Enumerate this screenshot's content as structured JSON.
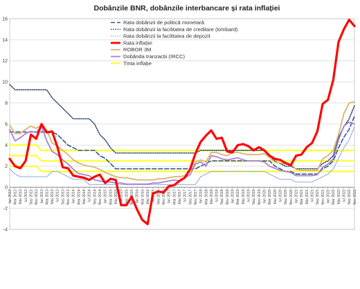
{
  "chart_data": {
    "type": "line",
    "title": "Dobânzile BNR, dobânzile interbancare și rata inflației",
    "xlabel": "",
    "ylabel": "",
    "ylim": [
      -4,
      16
    ],
    "yticks": [
      -4,
      -2,
      0,
      2,
      4,
      6,
      8,
      10,
      12,
      14,
      16
    ],
    "grid": "horizontal",
    "legend_position": "top-center",
    "categories": [
      "Ian 2012",
      "Mar 2012",
      "Mai 2012",
      "Iul 2012",
      "Sep 2012",
      "Nov 2012",
      "Ian 2013",
      "Mar 2013",
      "Mai 2013",
      "Iul 2013",
      "Sep 2013",
      "Nov 2013",
      "Ian 2014",
      "Mar 2014",
      "Mai 2014",
      "Iul 2014",
      "Sep 2014",
      "Nov 2014",
      "Ian 2015",
      "Mar 2015",
      "Mai 2015",
      "Iul 2015",
      "Sep 2015",
      "Nov 2015",
      "Ian 2016",
      "Mar 2016",
      "Mai 2016",
      "Iul 2016",
      "Sep 2016",
      "Nov 2016",
      "Ian 2017",
      "Mar 2017",
      "Mai 2017",
      "Iul 2017",
      "Sep 2017",
      "Nov 2017",
      "Ian 2018",
      "Mar 2018",
      "Mai 2018",
      "Iul 2018",
      "Sep 2018",
      "Nov 2018",
      "Ian 2019",
      "Mar 2019",
      "Mai 2019",
      "Iul 2019",
      "Sep 2019",
      "Nov 2019",
      "Ian 2020",
      "Mar 2020",
      "Mai 2020",
      "Iul 2020",
      "Sep 2020",
      "Nov 2020",
      "Ian 2021",
      "Mar 2021",
      "Mai 2021",
      "Iul 2021",
      "Sep 2021",
      "Nov 2021",
      "Ian 2022",
      "Mar 2022",
      "Mai 2022",
      "Iul 2022",
      "Sep 2022",
      "Nov 2022"
    ],
    "series": [
      {
        "name": "Rata dobânzii de politică monetară",
        "color": "#2f5597",
        "dash": "6,3",
        "width": 1.6,
        "values": [
          5.25,
          5.25,
          5.25,
          5.25,
          5.25,
          5.25,
          5.25,
          5.25,
          5.25,
          5.0,
          4.5,
          4.0,
          3.75,
          3.5,
          3.5,
          3.5,
          3.5,
          3.0,
          2.75,
          2.25,
          1.75,
          1.75,
          1.75,
          1.75,
          1.75,
          1.75,
          1.75,
          1.75,
          1.75,
          1.75,
          1.75,
          1.75,
          1.75,
          1.75,
          1.75,
          1.75,
          2.0,
          2.25,
          2.5,
          2.5,
          2.5,
          2.5,
          2.5,
          2.5,
          2.5,
          2.5,
          2.5,
          2.5,
          2.5,
          2.5,
          2.0,
          1.75,
          1.5,
          1.5,
          1.25,
          1.25,
          1.25,
          1.25,
          1.25,
          1.75,
          2.0,
          2.5,
          3.75,
          4.75,
          5.5,
          6.75
        ]
      },
      {
        "name": "Rata dobânzii la facilitatea de creditare (lombard)",
        "color": "#1f3864",
        "dash": "1.6,1.6",
        "width": 1.4,
        "values": [
          9.75,
          9.25,
          9.25,
          9.25,
          9.25,
          9.25,
          9.25,
          9.25,
          8.5,
          8.0,
          7.5,
          7.0,
          6.5,
          6.5,
          6.5,
          6.5,
          6.0,
          5.0,
          4.5,
          3.75,
          3.25,
          3.25,
          3.25,
          3.25,
          3.25,
          3.25,
          3.25,
          3.25,
          3.25,
          3.25,
          3.25,
          3.25,
          3.25,
          3.25,
          3.25,
          3.25,
          3.5,
          3.5,
          3.5,
          3.5,
          3.5,
          3.5,
          3.5,
          3.5,
          3.5,
          3.5,
          3.5,
          3.5,
          3.5,
          3.0,
          2.5,
          2.25,
          2.0,
          2.0,
          1.75,
          1.75,
          1.75,
          1.75,
          1.75,
          2.25,
          2.5,
          3.0,
          4.75,
          5.75,
          6.5,
          7.75
        ]
      },
      {
        "name": "Rata dobânzii la facilitatea de depozit",
        "color": "#8eaadb",
        "dash": "1.6,1.6",
        "width": 1.3,
        "values": [
          1.75,
          1.25,
          1.0,
          1.0,
          1.0,
          1.0,
          1.0,
          1.0,
          1.5,
          1.5,
          1.25,
          1.0,
          0.75,
          0.75,
          0.75,
          0.25,
          0.25,
          0.25,
          0.25,
          0.25,
          0.25,
          0.25,
          0.25,
          0.25,
          0.25,
          0.25,
          0.25,
          0.25,
          0.25,
          0.25,
          0.25,
          0.25,
          0.25,
          0.25,
          0.25,
          0.25,
          1.0,
          1.25,
          1.5,
          1.5,
          1.5,
          1.5,
          1.5,
          1.5,
          1.5,
          1.5,
          1.5,
          1.5,
          1.5,
          1.25,
          1.0,
          0.75,
          0.75,
          0.75,
          0.5,
          0.5,
          0.5,
          0.5,
          0.75,
          1.0,
          1.25,
          1.75,
          2.75,
          3.75,
          4.5,
          5.75
        ]
      },
      {
        "name": "Rata inflației",
        "color": "#ff0000",
        "dash": "",
        "width": 3.2,
        "values": [
          2.7,
          2.0,
          1.8,
          2.5,
          5.0,
          4.6,
          6.0,
          5.2,
          5.3,
          3.8,
          1.9,
          1.8,
          1.1,
          1.0,
          0.9,
          0.7,
          1.0,
          1.2,
          0.4,
          0.8,
          0.7,
          -1.7,
          -1.7,
          -0.9,
          -2.1,
          -3.1,
          -3.5,
          -0.6,
          -0.4,
          -0.5,
          0.1,
          0.2,
          0.6,
          0.9,
          1.7,
          3.2,
          4.3,
          4.9,
          5.4,
          4.6,
          4.7,
          3.4,
          3.3,
          4.0,
          4.1,
          3.9,
          3.5,
          3.8,
          3.5,
          3.0,
          2.7,
          2.6,
          2.3,
          2.1,
          3.0,
          3.1,
          3.8,
          4.2,
          5.3,
          7.9,
          8.3,
          10.2,
          13.8,
          15.0,
          15.9,
          15.3
        ]
      },
      {
        "name": "ROBOR 3M",
        "color": "#d9b36b",
        "dash": "",
        "width": 1.8,
        "values": [
          5.9,
          5.1,
          5.1,
          5.5,
          5.8,
          5.6,
          5.9,
          5.4,
          4.2,
          3.9,
          3.5,
          3.1,
          2.6,
          2.3,
          2.1,
          2.0,
          1.9,
          1.7,
          1.4,
          1.2,
          1.0,
          0.9,
          0.9,
          0.8,
          0.7,
          0.7,
          0.7,
          0.7,
          0.8,
          0.8,
          0.9,
          1.0,
          1.0,
          1.1,
          1.6,
          2.4,
          2.6,
          2.4,
          3.3,
          3.3,
          3.1,
          3.0,
          3.3,
          3.3,
          3.2,
          3.1,
          3.1,
          3.1,
          3.2,
          2.8,
          2.4,
          2.3,
          2.2,
          2.2,
          1.7,
          1.6,
          1.6,
          1.6,
          1.6,
          2.7,
          3.0,
          3.5,
          5.0,
          7.0,
          8.0,
          8.1
        ]
      },
      {
        "name": "Dobânda tranzacții (IRCC)",
        "color": "#a77fd6",
        "dash": "",
        "width": 1.8,
        "values": [
          5.5,
          4.4,
          4.7,
          5.1,
          5.3,
          5.2,
          5.8,
          4.4,
          3.4,
          3.1,
          2.6,
          2.2,
          1.7,
          1.3,
          1.2,
          1.1,
          0.7,
          0.6,
          0.5,
          0.5,
          0.4,
          0.4,
          0.3,
          0.3,
          0.3,
          0.3,
          0.3,
          0.4,
          0.4,
          0.5,
          0.6,
          0.7,
          0.6,
          0.9,
          1.2,
          2.2,
          2.4,
          2.0,
          3.0,
          2.9,
          2.7,
          2.6,
          2.7,
          2.8,
          2.6,
          2.5,
          2.5,
          2.5,
          2.4,
          2.0,
          1.8,
          1.6,
          1.5,
          1.4,
          1.1,
          1.1,
          1.1,
          1.1,
          1.2,
          1.9,
          2.2,
          2.7,
          4.5,
          5.8,
          6.2,
          6.0
        ]
      },
      {
        "name": "Ținta inflație",
        "color": "#ffff33",
        "dash": "",
        "width": 2.2,
        "band": true,
        "values": [
          3.0,
          3.0,
          3.0,
          3.0,
          3.0,
          3.0,
          2.5,
          2.5,
          2.5,
          2.5,
          2.5,
          2.5,
          2.5,
          2.5,
          2.5,
          2.5,
          2.5,
          2.5,
          2.5,
          2.5,
          2.5,
          2.5,
          2.5,
          2.5,
          2.5,
          2.5,
          2.5,
          2.5,
          2.5,
          2.5,
          2.5,
          2.5,
          2.5,
          2.5,
          2.5,
          2.5,
          2.5,
          2.5,
          2.5,
          2.5,
          2.5,
          2.5,
          2.5,
          2.5,
          2.5,
          2.5,
          2.5,
          2.5,
          2.5,
          2.5,
          2.5,
          2.5,
          2.5,
          2.5,
          2.5,
          2.5,
          2.5,
          2.5,
          2.5,
          2.5,
          2.5,
          2.5,
          2.5,
          2.5,
          2.5,
          2.5
        ]
      }
    ]
  }
}
